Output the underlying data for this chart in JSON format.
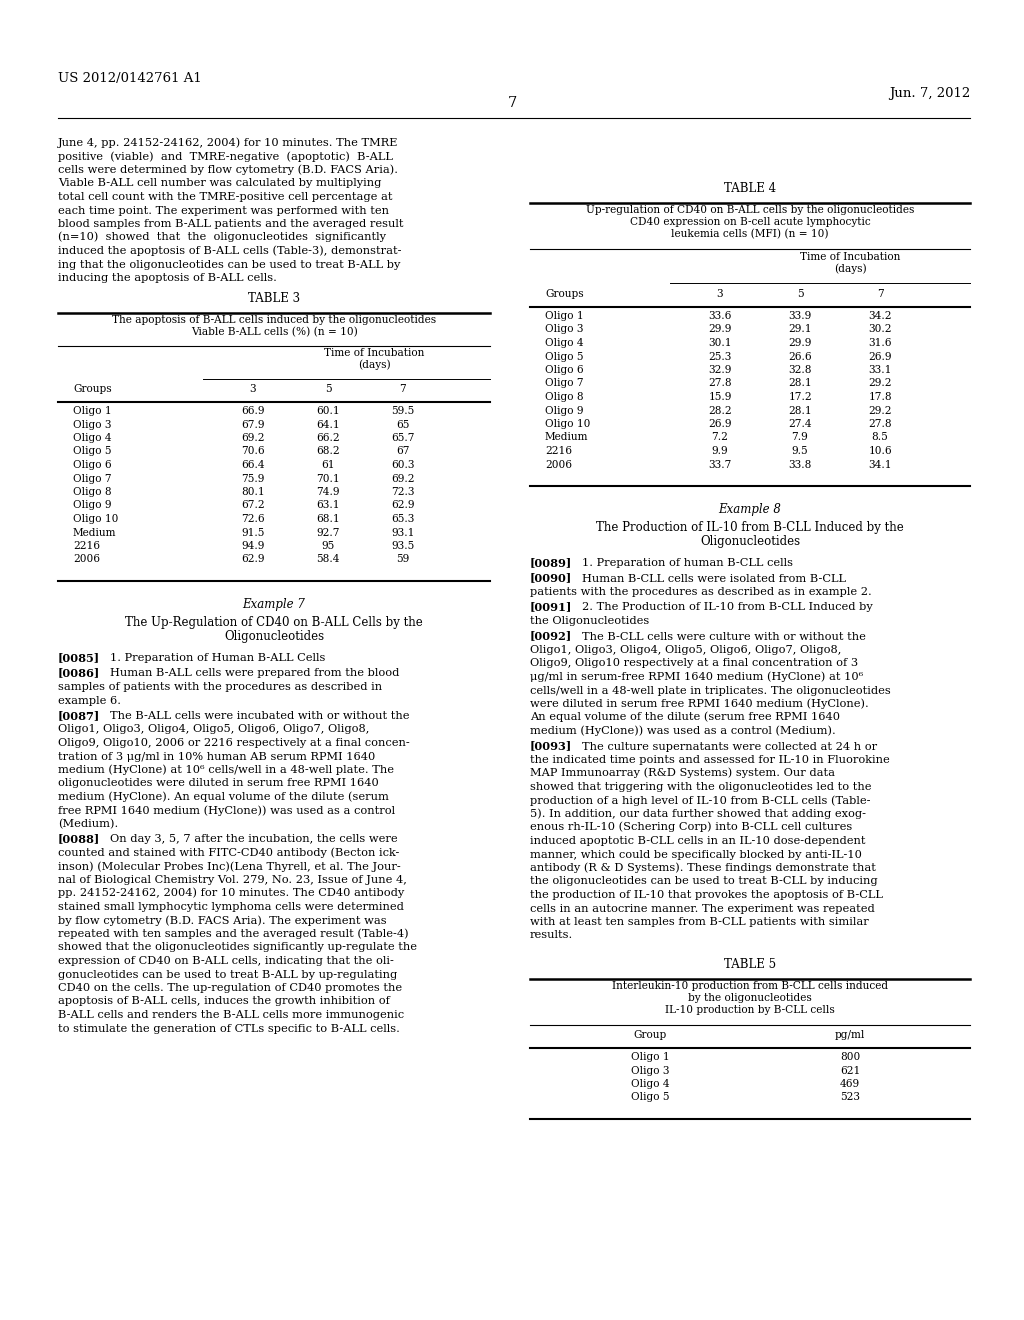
{
  "page_number": "7",
  "patent_number": "US 2012/0142761 A1",
  "patent_date": "Jun. 7, 2012",
  "background_color": "#ffffff",
  "text_color": "#000000",
  "table3_title": "TABLE 3",
  "table3_subtitle1": "The apoptosis of B-ALL cells induced by the oligonucleotides",
  "table3_subtitle2": "Viable B-ALL cells (%) (n = 10)",
  "table3_incubation": "Time of Incubation",
  "table3_days": "(days)",
  "table3_headers": [
    "Groups",
    "3",
    "5",
    "7"
  ],
  "table3_data": [
    [
      "Oligo 1",
      "66.9",
      "60.1",
      "59.5"
    ],
    [
      "Oligo 3",
      "67.9",
      "64.1",
      "65"
    ],
    [
      "Oligo 4",
      "69.2",
      "66.2",
      "65.7"
    ],
    [
      "Oligo 5",
      "70.6",
      "68.2",
      "67"
    ],
    [
      "Oligo 6",
      "66.4",
      "61",
      "60.3"
    ],
    [
      "Oligo 7",
      "75.9",
      "70.1",
      "69.2"
    ],
    [
      "Oligo 8",
      "80.1",
      "74.9",
      "72.3"
    ],
    [
      "Oligo 9",
      "67.2",
      "63.1",
      "62.9"
    ],
    [
      "Oligo 10",
      "72.6",
      "68.1",
      "65.3"
    ],
    [
      "Medium",
      "91.5",
      "92.7",
      "93.1"
    ],
    [
      "2216",
      "94.9",
      "95",
      "93.5"
    ],
    [
      "2006",
      "62.9",
      "58.4",
      "59"
    ]
  ],
  "table4_title": "TABLE 4",
  "table4_subtitle1": "Up-regulation of CD40 on B-ALL cells by the oligonucleotides",
  "table4_subtitle2": "CD40 expression on B-cell acute lymphocytic",
  "table4_subtitle3": "leukemia cells (MFI) (n = 10)",
  "table4_incubation": "Time of Incubation",
  "table4_days": "(days)",
  "table4_headers": [
    "Groups",
    "3",
    "5",
    "7"
  ],
  "table4_data": [
    [
      "Oligo 1",
      "33.6",
      "33.9",
      "34.2"
    ],
    [
      "Oligo 3",
      "29.9",
      "29.1",
      "30.2"
    ],
    [
      "Oligo 4",
      "30.1",
      "29.9",
      "31.6"
    ],
    [
      "Oligo 5",
      "25.3",
      "26.6",
      "26.9"
    ],
    [
      "Oligo 6",
      "32.9",
      "32.8",
      "33.1"
    ],
    [
      "Oligo 7",
      "27.8",
      "28.1",
      "29.2"
    ],
    [
      "Oligo 8",
      "15.9",
      "17.2",
      "17.8"
    ],
    [
      "Oligo 9",
      "28.2",
      "28.1",
      "29.2"
    ],
    [
      "Oligo 10",
      "26.9",
      "27.4",
      "27.8"
    ],
    [
      "Medium",
      "7.2",
      "7.9",
      "8.5"
    ],
    [
      "2216",
      "9.9",
      "9.5",
      "10.6"
    ],
    [
      "2006",
      "33.7",
      "33.8",
      "34.1"
    ]
  ],
  "table5_title": "TABLE 5",
  "table5_subtitle1": "Interleukin-10 production from B-CLL cells induced",
  "table5_subtitle2": "by the oligonucleotides",
  "table5_subtitle3": "IL-10 production by B-CLL cells",
  "table5_headers": [
    "Group",
    "pg/ml"
  ],
  "table5_data": [
    [
      "Oligo 1",
      "800"
    ],
    [
      "Oligo 3",
      "621"
    ],
    [
      "Oligo 4",
      "469"
    ],
    [
      "Oligo 5",
      "523"
    ]
  ],
  "left_intro_lines": [
    "June 4, pp. 24152-24162, 2004) for 10 minutes. The TMRE",
    "positive  (viable)  and  TMRE-negative  (apoptotic)  B-ALL",
    "cells were determined by flow cytometry (B.D. FACS Aria).",
    "Viable B-ALL cell number was calculated by multiplying",
    "total cell count with the TMRE-positive cell percentage at",
    "each time point. The experiment was performed with ten",
    "blood samples from B-ALL patients and the averaged result",
    "(n=10)  showed  that  the  oligonucleotides  significantly",
    "induced the apoptosis of B-ALL cells (Table-3), demonstrat-",
    "ing that the oligonucleotides can be used to treat B-ALL by",
    "inducing the apoptosis of B-ALL cells."
  ],
  "example7_title": "Example 7",
  "example7_line1": "The Up-Regulation of CD40 on B-ALL Cells by the",
  "example7_line2": "Oligonucleotides",
  "example8_title": "Example 8",
  "example8_line1": "The Production of IL-10 from B-CLL Induced by the",
  "example8_line2": "Oligonucleotides",
  "left_paragraphs": [
    {
      "tag": "[0085]",
      "lines": [
        "1. Preparation of Human B-ALL Cells"
      ]
    },
    {
      "tag": "[0086]",
      "lines": [
        "Human B-ALL cells were prepared from the blood",
        "samples of patients with the procedures as described in",
        "example 6."
      ]
    },
    {
      "tag": "[0087]",
      "lines": [
        "The B-ALL cells were incubated with or without the",
        "Oligo1, Oligo3, Oligo4, Oligo5, Oligo6, Oligo7, Oligo8,",
        "Oligo9, Oligo10, 2006 or 2216 respectively at a final concen-",
        "tration of 3 μg/ml in 10% human AB serum RPMI 1640",
        "medium (HyClone) at 10⁶ cells/well in a 48-well plate. The",
        "oligonucleotides were diluted in serum free RPMI 1640",
        "medium (HyClone). An equal volume of the dilute (serum",
        "free RPMI 1640 medium (HyClone)) was used as a control",
        "(Medium)."
      ]
    },
    {
      "tag": "[0088]",
      "lines": [
        "On day 3, 5, 7 after the incubation, the cells were",
        "counted and stained with FITC-CD40 antibody (Becton ick-",
        "inson) (Molecular Probes Inc)(Lena Thyrell, et al. The Jour-",
        "nal of Biological Chemistry Vol. 279, No. 23, Issue of June 4,",
        "pp. 24152-24162, 2004) for 10 minutes. The CD40 antibody",
        "stained small lymphocytic lymphoma cells were determined",
        "by flow cytometry (B.D. FACS Aria). The experiment was",
        "repeated with ten samples and the averaged result (Table-4)",
        "showed that the oligonucleotides significantly up-regulate the",
        "expression of CD40 on B-ALL cells, indicating that the oli-",
        "gonucleotides can be used to treat B-ALL by up-regulating",
        "CD40 on the cells. The up-regulation of CD40 promotes the",
        "apoptosis of B-ALL cells, induces the growth inhibition of",
        "B-ALL cells and renders the B-ALL cells more immunogenic",
        "to stimulate the generation of CTLs specific to B-ALL cells."
      ]
    }
  ],
  "right_paragraphs": [
    {
      "tag": "[0089]",
      "lines": [
        "1. Preparation of human B-CLL cells"
      ]
    },
    {
      "tag": "[0090]",
      "lines": [
        "Human B-CLL cells were isolated from B-CLL",
        "patients with the procedures as described as in example 2."
      ]
    },
    {
      "tag": "[0091]",
      "lines": [
        "2. The Production of IL-10 from B-CLL Induced by",
        "the Oligonucleotides"
      ]
    },
    {
      "tag": "[0092]",
      "lines": [
        "The B-CLL cells were culture with or without the",
        "Oligo1, Oligo3, Oligo4, Oligo5, Oligo6, Oligo7, Oligo8,",
        "Oligo9, Oligo10 respectively at a final concentration of 3",
        "μg/ml in serum-free RPMI 1640 medium (HyClone) at 10⁶",
        "cells/well in a 48-well plate in triplicates. The oligonucleotides",
        "were diluted in serum free RPMI 1640 medium (HyClone).",
        "An equal volume of the dilute (serum free RPMI 1640",
        "medium (HyClone)) was used as a control (Medium)."
      ]
    },
    {
      "tag": "[0093]",
      "lines": [
        "The culture supernatants were collected at 24 h or",
        "the indicated time points and assessed for IL-10 in Fluorokine",
        "MAP Immunoarray (R&D Systems) system. Our data",
        "showed that triggering with the oligonucleotides led to the",
        "production of a high level of IL-10 from B-CLL cells (Table-",
        "5). In addition, our data further showed that adding exog-",
        "enous rh-IL-10 (Schering Corp) into B-CLL cell cultures",
        "induced apoptotic B-CLL cells in an IL-10 dose-dependent",
        "manner, which could be specifically blocked by anti-IL-10",
        "antibody (R & D Systems). These findings demonstrate that",
        "the oligonucleotides can be used to treat B-CLL by inducing",
        "the production of IL-10 that provokes the apoptosis of B-CLL",
        "cells in an autocrine manner. The experiment was repeated",
        "with at least ten samples from B-CLL patients with similar",
        "results."
      ]
    }
  ]
}
